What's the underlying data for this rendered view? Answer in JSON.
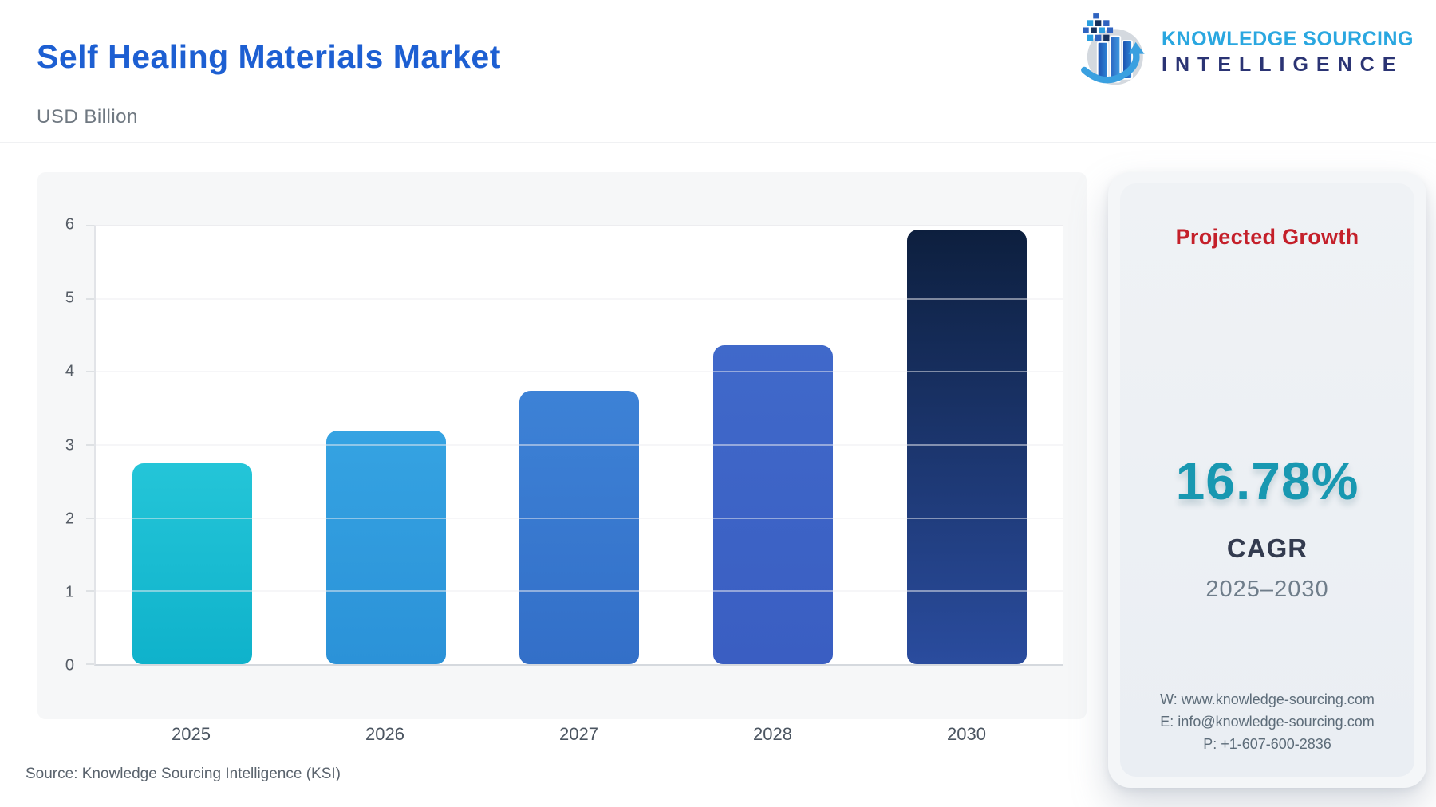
{
  "header": {
    "title": "Self Healing Materials Market",
    "subtitle": "USD Billion"
  },
  "logo": {
    "line1": "KNOWLEDGE SOURCING",
    "line2": "INTELLIGENCE",
    "line1_color": "#2aa7e0",
    "line2_color": "#2b3474"
  },
  "chart_data": {
    "type": "bar",
    "title": "Self Healing Materials Market",
    "ylabel": "USD Billion",
    "categories": [
      "2025",
      "2026",
      "2027",
      "2028",
      "2030"
    ],
    "values": [
      2.75,
      3.2,
      3.74,
      4.36,
      5.95
    ],
    "ylim": [
      0,
      6
    ],
    "yticks": [
      0,
      1,
      2,
      3,
      4,
      5,
      6
    ],
    "grid": true,
    "legend": false,
    "bar_colors": [
      {
        "top": "#24c5d8",
        "bottom": "#0fb2cb"
      },
      {
        "top": "#35a3e2",
        "bottom": "#2b92d8"
      },
      {
        "top": "#3d82d6",
        "bottom": "#336fc8"
      },
      {
        "top": "#4069ca",
        "bottom": "#3a5ec2"
      },
      {
        "top": "#0d1f3e",
        "bottom": "#2a4c9e"
      }
    ]
  },
  "growth_card": {
    "heading": "Projected Growth",
    "heading_color": "#c4202a",
    "value": "16.78%",
    "value_color": "#1898b1",
    "label": "CAGR",
    "period": "2025–2030",
    "contact": {
      "website": "W: www.knowledge-sourcing.com",
      "email": "E: info@knowledge-sourcing.com",
      "phone": "P: +1-607-600-2836"
    }
  },
  "footer": {
    "source": "Source: Knowledge Sourcing Intelligence (KSI)"
  }
}
